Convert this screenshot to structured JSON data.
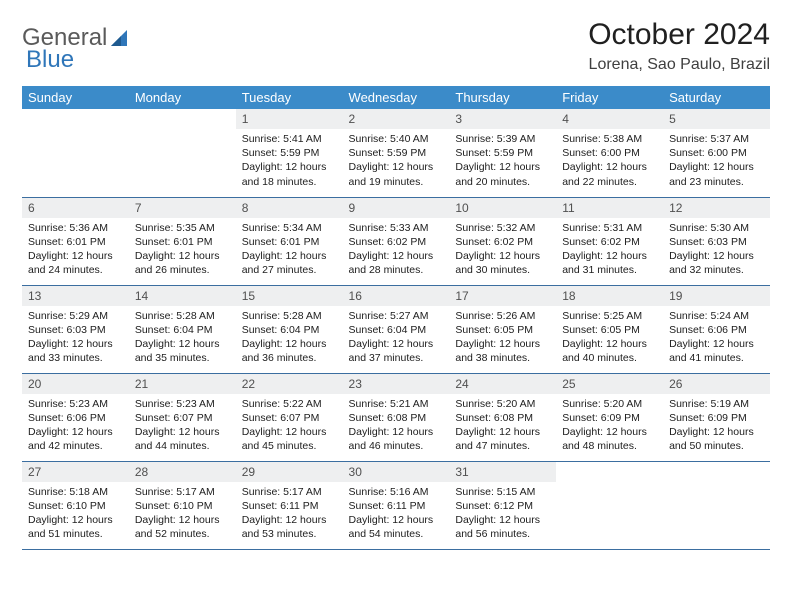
{
  "logo": {
    "part1": "General",
    "part2": "Blue"
  },
  "title": "October 2024",
  "location": "Lorena, Sao Paulo, Brazil",
  "colors": {
    "header_bg": "#3b8bc9",
    "header_text": "#ffffff",
    "daynum_bg": "#eeeff0",
    "row_border": "#3b6ea0",
    "logo_gray": "#5a5a5a",
    "logo_blue": "#2f76b9"
  },
  "weekdays": [
    "Sunday",
    "Monday",
    "Tuesday",
    "Wednesday",
    "Thursday",
    "Friday",
    "Saturday"
  ],
  "weeks": [
    [
      {
        "n": "",
        "sr": "",
        "ss": "",
        "dl": ""
      },
      {
        "n": "",
        "sr": "",
        "ss": "",
        "dl": ""
      },
      {
        "n": "1",
        "sr": "Sunrise: 5:41 AM",
        "ss": "Sunset: 5:59 PM",
        "dl": "Daylight: 12 hours and 18 minutes."
      },
      {
        "n": "2",
        "sr": "Sunrise: 5:40 AM",
        "ss": "Sunset: 5:59 PM",
        "dl": "Daylight: 12 hours and 19 minutes."
      },
      {
        "n": "3",
        "sr": "Sunrise: 5:39 AM",
        "ss": "Sunset: 5:59 PM",
        "dl": "Daylight: 12 hours and 20 minutes."
      },
      {
        "n": "4",
        "sr": "Sunrise: 5:38 AM",
        "ss": "Sunset: 6:00 PM",
        "dl": "Daylight: 12 hours and 22 minutes."
      },
      {
        "n": "5",
        "sr": "Sunrise: 5:37 AM",
        "ss": "Sunset: 6:00 PM",
        "dl": "Daylight: 12 hours and 23 minutes."
      }
    ],
    [
      {
        "n": "6",
        "sr": "Sunrise: 5:36 AM",
        "ss": "Sunset: 6:01 PM",
        "dl": "Daylight: 12 hours and 24 minutes."
      },
      {
        "n": "7",
        "sr": "Sunrise: 5:35 AM",
        "ss": "Sunset: 6:01 PM",
        "dl": "Daylight: 12 hours and 26 minutes."
      },
      {
        "n": "8",
        "sr": "Sunrise: 5:34 AM",
        "ss": "Sunset: 6:01 PM",
        "dl": "Daylight: 12 hours and 27 minutes."
      },
      {
        "n": "9",
        "sr": "Sunrise: 5:33 AM",
        "ss": "Sunset: 6:02 PM",
        "dl": "Daylight: 12 hours and 28 minutes."
      },
      {
        "n": "10",
        "sr": "Sunrise: 5:32 AM",
        "ss": "Sunset: 6:02 PM",
        "dl": "Daylight: 12 hours and 30 minutes."
      },
      {
        "n": "11",
        "sr": "Sunrise: 5:31 AM",
        "ss": "Sunset: 6:02 PM",
        "dl": "Daylight: 12 hours and 31 minutes."
      },
      {
        "n": "12",
        "sr": "Sunrise: 5:30 AM",
        "ss": "Sunset: 6:03 PM",
        "dl": "Daylight: 12 hours and 32 minutes."
      }
    ],
    [
      {
        "n": "13",
        "sr": "Sunrise: 5:29 AM",
        "ss": "Sunset: 6:03 PM",
        "dl": "Daylight: 12 hours and 33 minutes."
      },
      {
        "n": "14",
        "sr": "Sunrise: 5:28 AM",
        "ss": "Sunset: 6:04 PM",
        "dl": "Daylight: 12 hours and 35 minutes."
      },
      {
        "n": "15",
        "sr": "Sunrise: 5:28 AM",
        "ss": "Sunset: 6:04 PM",
        "dl": "Daylight: 12 hours and 36 minutes."
      },
      {
        "n": "16",
        "sr": "Sunrise: 5:27 AM",
        "ss": "Sunset: 6:04 PM",
        "dl": "Daylight: 12 hours and 37 minutes."
      },
      {
        "n": "17",
        "sr": "Sunrise: 5:26 AM",
        "ss": "Sunset: 6:05 PM",
        "dl": "Daylight: 12 hours and 38 minutes."
      },
      {
        "n": "18",
        "sr": "Sunrise: 5:25 AM",
        "ss": "Sunset: 6:05 PM",
        "dl": "Daylight: 12 hours and 40 minutes."
      },
      {
        "n": "19",
        "sr": "Sunrise: 5:24 AM",
        "ss": "Sunset: 6:06 PM",
        "dl": "Daylight: 12 hours and 41 minutes."
      }
    ],
    [
      {
        "n": "20",
        "sr": "Sunrise: 5:23 AM",
        "ss": "Sunset: 6:06 PM",
        "dl": "Daylight: 12 hours and 42 minutes."
      },
      {
        "n": "21",
        "sr": "Sunrise: 5:23 AM",
        "ss": "Sunset: 6:07 PM",
        "dl": "Daylight: 12 hours and 44 minutes."
      },
      {
        "n": "22",
        "sr": "Sunrise: 5:22 AM",
        "ss": "Sunset: 6:07 PM",
        "dl": "Daylight: 12 hours and 45 minutes."
      },
      {
        "n": "23",
        "sr": "Sunrise: 5:21 AM",
        "ss": "Sunset: 6:08 PM",
        "dl": "Daylight: 12 hours and 46 minutes."
      },
      {
        "n": "24",
        "sr": "Sunrise: 5:20 AM",
        "ss": "Sunset: 6:08 PM",
        "dl": "Daylight: 12 hours and 47 minutes."
      },
      {
        "n": "25",
        "sr": "Sunrise: 5:20 AM",
        "ss": "Sunset: 6:09 PM",
        "dl": "Daylight: 12 hours and 48 minutes."
      },
      {
        "n": "26",
        "sr": "Sunrise: 5:19 AM",
        "ss": "Sunset: 6:09 PM",
        "dl": "Daylight: 12 hours and 50 minutes."
      }
    ],
    [
      {
        "n": "27",
        "sr": "Sunrise: 5:18 AM",
        "ss": "Sunset: 6:10 PM",
        "dl": "Daylight: 12 hours and 51 minutes."
      },
      {
        "n": "28",
        "sr": "Sunrise: 5:17 AM",
        "ss": "Sunset: 6:10 PM",
        "dl": "Daylight: 12 hours and 52 minutes."
      },
      {
        "n": "29",
        "sr": "Sunrise: 5:17 AM",
        "ss": "Sunset: 6:11 PM",
        "dl": "Daylight: 12 hours and 53 minutes."
      },
      {
        "n": "30",
        "sr": "Sunrise: 5:16 AM",
        "ss": "Sunset: 6:11 PM",
        "dl": "Daylight: 12 hours and 54 minutes."
      },
      {
        "n": "31",
        "sr": "Sunrise: 5:15 AM",
        "ss": "Sunset: 6:12 PM",
        "dl": "Daylight: 12 hours and 56 minutes."
      },
      {
        "n": "",
        "sr": "",
        "ss": "",
        "dl": ""
      },
      {
        "n": "",
        "sr": "",
        "ss": "",
        "dl": ""
      }
    ]
  ]
}
